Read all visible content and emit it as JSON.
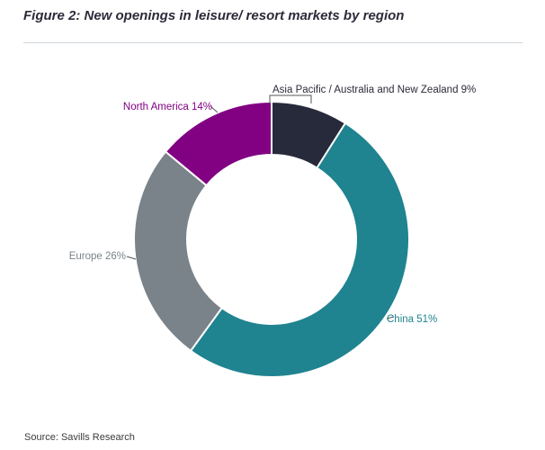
{
  "figure": {
    "title": "Figure 2: New openings in leisure/ resort markets by region",
    "source": "Source: Savills Research"
  },
  "chart_data": {
    "type": "pie",
    "donut": true,
    "categories": [
      "Asia Pacific / Australia and New Zealand",
      "China",
      "Europe",
      "North America"
    ],
    "values": [
      9,
      51,
      26,
      14
    ],
    "unit": "%",
    "labels": [
      "Asia Pacific / Australia and New Zealand 9%",
      "China 51%",
      "Europe 26%",
      "North America 14%"
    ],
    "colors": [
      "#262a3b",
      "#1f8390",
      "#7a8389",
      "#820082"
    ],
    "label_colors": [
      "#2b2b3a",
      "#1f8390",
      "#7a8389",
      "#820082"
    ],
    "legend": "none"
  }
}
